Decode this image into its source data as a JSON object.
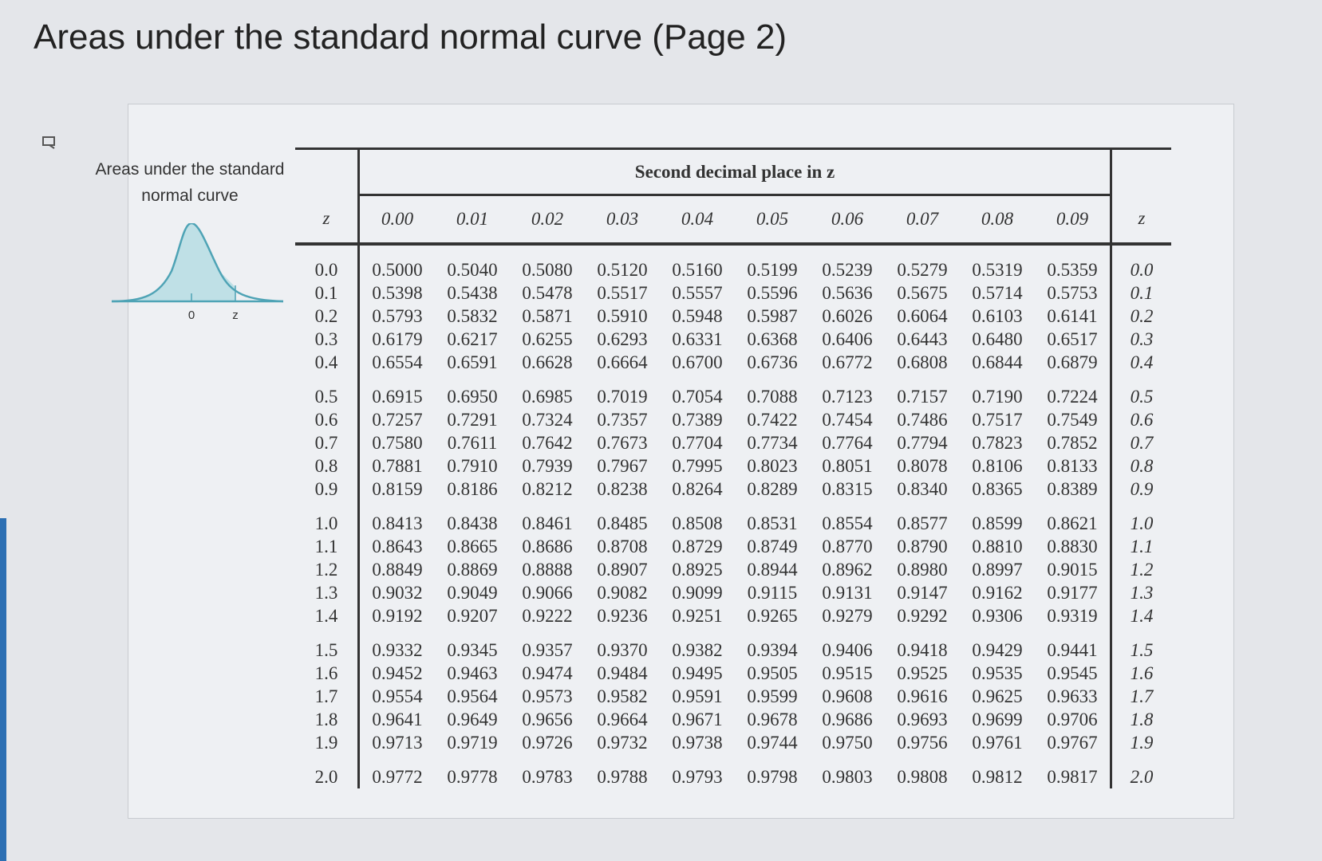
{
  "header": {
    "title": "Areas under the standard normal curve (Page 2)"
  },
  "figure": {
    "caption": "Areas under the standard normal curve",
    "axis_labels": [
      "0",
      "z"
    ]
  },
  "table": {
    "group_header": "Second decimal place in z",
    "z_label": "z",
    "columns": [
      "0.00",
      "0.01",
      "0.02",
      "0.03",
      "0.04",
      "0.05",
      "0.06",
      "0.07",
      "0.08",
      "0.09"
    ],
    "rows": [
      {
        "z": "0.0",
        "values": [
          "0.5000",
          "0.5040",
          "0.5080",
          "0.5120",
          "0.5160",
          "0.5199",
          "0.5239",
          "0.5279",
          "0.5319",
          "0.5359"
        ]
      },
      {
        "z": "0.1",
        "values": [
          "0.5398",
          "0.5438",
          "0.5478",
          "0.5517",
          "0.5557",
          "0.5596",
          "0.5636",
          "0.5675",
          "0.5714",
          "0.5753"
        ]
      },
      {
        "z": "0.2",
        "values": [
          "0.5793",
          "0.5832",
          "0.5871",
          "0.5910",
          "0.5948",
          "0.5987",
          "0.6026",
          "0.6064",
          "0.6103",
          "0.6141"
        ]
      },
      {
        "z": "0.3",
        "values": [
          "0.6179",
          "0.6217",
          "0.6255",
          "0.6293",
          "0.6331",
          "0.6368",
          "0.6406",
          "0.6443",
          "0.6480",
          "0.6517"
        ]
      },
      {
        "z": "0.4",
        "values": [
          "0.6554",
          "0.6591",
          "0.6628",
          "0.6664",
          "0.6700",
          "0.6736",
          "0.6772",
          "0.6808",
          "0.6844",
          "0.6879"
        ]
      },
      {
        "z": "0.5",
        "values": [
          "0.6915",
          "0.6950",
          "0.6985",
          "0.7019",
          "0.7054",
          "0.7088",
          "0.7123",
          "0.7157",
          "0.7190",
          "0.7224"
        ]
      },
      {
        "z": "0.6",
        "values": [
          "0.7257",
          "0.7291",
          "0.7324",
          "0.7357",
          "0.7389",
          "0.7422",
          "0.7454",
          "0.7486",
          "0.7517",
          "0.7549"
        ]
      },
      {
        "z": "0.7",
        "values": [
          "0.7580",
          "0.7611",
          "0.7642",
          "0.7673",
          "0.7704",
          "0.7734",
          "0.7764",
          "0.7794",
          "0.7823",
          "0.7852"
        ]
      },
      {
        "z": "0.8",
        "values": [
          "0.7881",
          "0.7910",
          "0.7939",
          "0.7967",
          "0.7995",
          "0.8023",
          "0.8051",
          "0.8078",
          "0.8106",
          "0.8133"
        ]
      },
      {
        "z": "0.9",
        "values": [
          "0.8159",
          "0.8186",
          "0.8212",
          "0.8238",
          "0.8264",
          "0.8289",
          "0.8315",
          "0.8340",
          "0.8365",
          "0.8389"
        ]
      },
      {
        "z": "1.0",
        "values": [
          "0.8413",
          "0.8438",
          "0.8461",
          "0.8485",
          "0.8508",
          "0.8531",
          "0.8554",
          "0.8577",
          "0.8599",
          "0.8621"
        ]
      },
      {
        "z": "1.1",
        "values": [
          "0.8643",
          "0.8665",
          "0.8686",
          "0.8708",
          "0.8729",
          "0.8749",
          "0.8770",
          "0.8790",
          "0.8810",
          "0.8830"
        ]
      },
      {
        "z": "1.2",
        "values": [
          "0.8849",
          "0.8869",
          "0.8888",
          "0.8907",
          "0.8925",
          "0.8944",
          "0.8962",
          "0.8980",
          "0.8997",
          "0.9015"
        ]
      },
      {
        "z": "1.3",
        "values": [
          "0.9032",
          "0.9049",
          "0.9066",
          "0.9082",
          "0.9099",
          "0.9115",
          "0.9131",
          "0.9147",
          "0.9162",
          "0.9177"
        ]
      },
      {
        "z": "1.4",
        "values": [
          "0.9192",
          "0.9207",
          "0.9222",
          "0.9236",
          "0.9251",
          "0.9265",
          "0.9279",
          "0.9292",
          "0.9306",
          "0.9319"
        ]
      },
      {
        "z": "1.5",
        "values": [
          "0.9332",
          "0.9345",
          "0.9357",
          "0.9370",
          "0.9382",
          "0.9394",
          "0.9406",
          "0.9418",
          "0.9429",
          "0.9441"
        ]
      },
      {
        "z": "1.6",
        "values": [
          "0.9452",
          "0.9463",
          "0.9474",
          "0.9484",
          "0.9495",
          "0.9505",
          "0.9515",
          "0.9525",
          "0.9535",
          "0.9545"
        ]
      },
      {
        "z": "1.7",
        "values": [
          "0.9554",
          "0.9564",
          "0.9573",
          "0.9582",
          "0.9591",
          "0.9599",
          "0.9608",
          "0.9616",
          "0.9625",
          "0.9633"
        ]
      },
      {
        "z": "1.8",
        "values": [
          "0.9641",
          "0.9649",
          "0.9656",
          "0.9664",
          "0.9671",
          "0.9678",
          "0.9686",
          "0.9693",
          "0.9699",
          "0.9706"
        ]
      },
      {
        "z": "1.9",
        "values": [
          "0.9713",
          "0.9719",
          "0.9726",
          "0.9732",
          "0.9738",
          "0.9744",
          "0.9750",
          "0.9756",
          "0.9761",
          "0.9767"
        ]
      },
      {
        "z": "2.0",
        "values": [
          "0.9772",
          "0.9778",
          "0.9783",
          "0.9788",
          "0.9793",
          "0.9798",
          "0.9803",
          "0.9808",
          "0.9812",
          "0.9817"
        ]
      }
    ]
  }
}
